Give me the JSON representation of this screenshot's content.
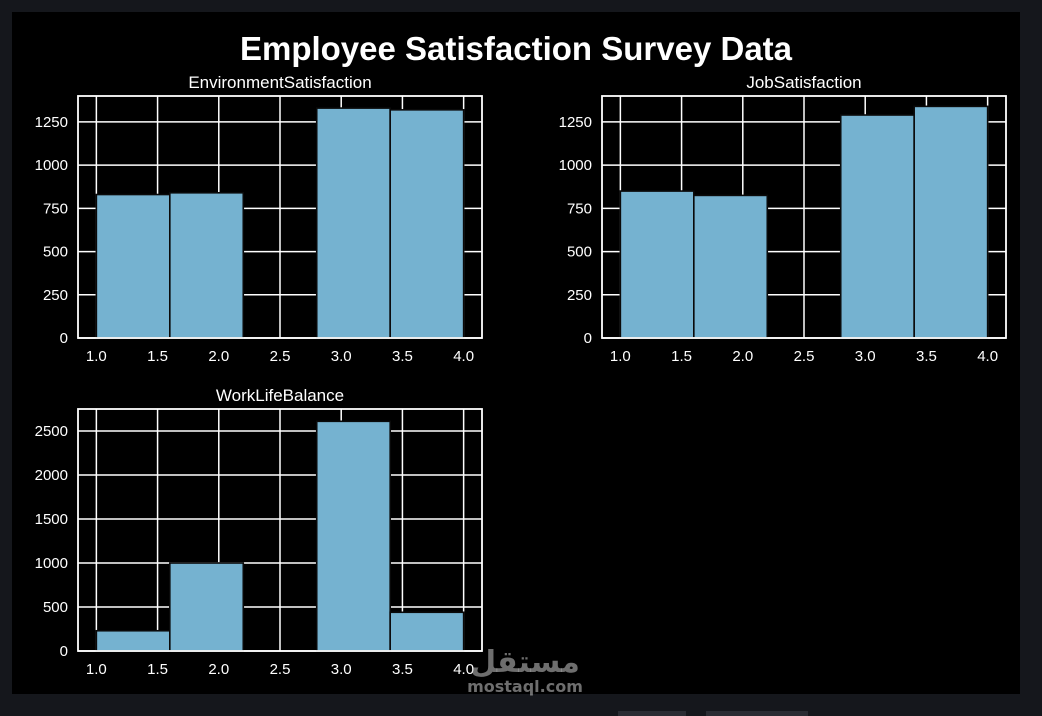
{
  "figure": {
    "title": "Employee Satisfaction Survey Data",
    "background": "#000000",
    "watermark": {
      "brand_arabic": "مستقل",
      "brand_latin": "mostaql.com"
    }
  },
  "chart_data": [
    {
      "type": "bar",
      "title": "EnvironmentSatisfaction",
      "xlabel": "",
      "ylabel": "",
      "xlim": [
        0.85,
        4.15
      ],
      "ylim": [
        0,
        1400
      ],
      "xticks": [
        "1.0",
        "1.5",
        "2.0",
        "2.5",
        "3.0",
        "3.5",
        "4.0"
      ],
      "yticks": [
        "0",
        "250",
        "500",
        "750",
        "1000",
        "1250"
      ],
      "bins": [
        {
          "start": 1.0,
          "end": 1.6,
          "value": 830
        },
        {
          "start": 1.6,
          "end": 2.2,
          "value": 840
        },
        {
          "start": 2.2,
          "end": 2.8,
          "value": 0
        },
        {
          "start": 2.8,
          "end": 3.4,
          "value": 1330
        },
        {
          "start": 3.4,
          "end": 4.0,
          "value": 1320
        }
      ],
      "grid": true,
      "bar_color": "#75b2d0"
    },
    {
      "type": "bar",
      "title": "JobSatisfaction",
      "xlabel": "",
      "ylabel": "",
      "xlim": [
        0.85,
        4.15
      ],
      "ylim": [
        0,
        1400
      ],
      "xticks": [
        "1.0",
        "1.5",
        "2.0",
        "2.5",
        "3.0",
        "3.5",
        "4.0"
      ],
      "yticks": [
        "0",
        "250",
        "500",
        "750",
        "1000",
        "1250"
      ],
      "bins": [
        {
          "start": 1.0,
          "end": 1.6,
          "value": 850
        },
        {
          "start": 1.6,
          "end": 2.2,
          "value": 825
        },
        {
          "start": 2.2,
          "end": 2.8,
          "value": 0
        },
        {
          "start": 2.8,
          "end": 3.4,
          "value": 1290
        },
        {
          "start": 3.4,
          "end": 4.0,
          "value": 1340
        }
      ],
      "grid": true,
      "bar_color": "#75b2d0"
    },
    {
      "type": "bar",
      "title": "WorkLifeBalance",
      "xlabel": "",
      "ylabel": "",
      "xlim": [
        0.85,
        4.15
      ],
      "ylim": [
        0,
        2750
      ],
      "xticks": [
        "1.0",
        "1.5",
        "2.0",
        "2.5",
        "3.0",
        "3.5",
        "4.0"
      ],
      "yticks": [
        "0",
        "500",
        "1000",
        "1500",
        "2000",
        "2500"
      ],
      "bins": [
        {
          "start": 1.0,
          "end": 1.6,
          "value": 230
        },
        {
          "start": 1.6,
          "end": 2.2,
          "value": 1000
        },
        {
          "start": 2.2,
          "end": 2.8,
          "value": 0
        },
        {
          "start": 2.8,
          "end": 3.4,
          "value": 2610
        },
        {
          "start": 3.4,
          "end": 4.0,
          "value": 440
        }
      ],
      "grid": true,
      "bar_color": "#75b2d0"
    }
  ]
}
